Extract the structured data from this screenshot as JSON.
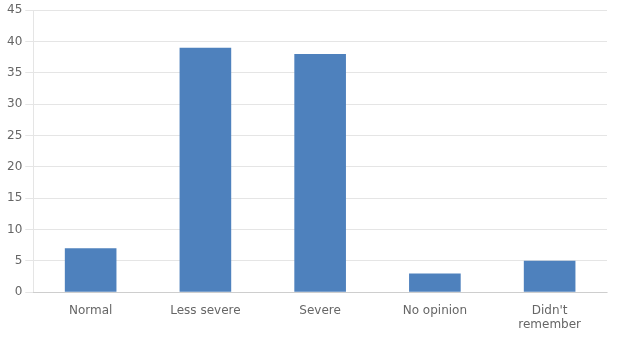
{
  "chart_data": {
    "type": "bar",
    "categories": [
      "Normal",
      "Less severe",
      "Severe",
      "No opinion",
      "Didn't\nremember"
    ],
    "values": [
      7,
      39,
      38,
      3,
      5
    ],
    "color": "#4e81bd",
    "ylim": [
      0,
      45
    ],
    "yticks": [
      0,
      5,
      10,
      15,
      20,
      25,
      30,
      35,
      40,
      45
    ],
    "grid": true
  }
}
